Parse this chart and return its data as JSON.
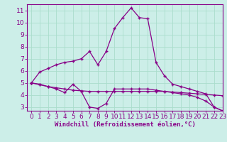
{
  "line1_x": [
    0,
    1,
    2,
    3,
    4,
    5,
    6,
    7,
    8,
    9,
    10,
    11,
    12,
    13,
    14,
    15,
    16,
    17,
    18,
    19,
    20,
    21,
    22,
    23
  ],
  "line1_y": [
    5.0,
    5.9,
    6.2,
    6.5,
    6.7,
    6.8,
    7.0,
    7.6,
    6.5,
    7.6,
    9.5,
    10.4,
    11.2,
    10.4,
    10.3,
    6.7,
    5.6,
    4.9,
    4.7,
    4.5,
    4.3,
    4.1,
    3.0,
    2.7
  ],
  "line2_x": [
    0,
    1,
    2,
    3,
    4,
    5,
    6,
    7,
    8,
    9,
    10,
    11,
    12,
    13,
    14,
    15,
    16,
    17,
    18,
    19,
    20,
    21,
    22,
    23
  ],
  "line2_y": [
    5.0,
    4.85,
    4.7,
    4.6,
    4.5,
    4.4,
    4.35,
    4.3,
    4.3,
    4.3,
    4.3,
    4.3,
    4.3,
    4.3,
    4.3,
    4.3,
    4.3,
    4.25,
    4.2,
    4.15,
    4.1,
    4.05,
    4.0,
    3.95
  ],
  "line3_x": [
    0,
    1,
    2,
    3,
    4,
    5,
    6,
    7,
    8,
    9,
    10,
    11,
    12,
    13,
    14,
    15,
    16,
    17,
    18,
    19,
    20,
    21,
    22,
    23
  ],
  "line3_y": [
    5.0,
    4.9,
    4.7,
    4.5,
    4.2,
    4.9,
    4.3,
    3.0,
    2.9,
    3.3,
    4.5,
    4.5,
    4.5,
    4.5,
    4.5,
    4.4,
    4.3,
    4.2,
    4.1,
    4.0,
    3.8,
    3.5,
    3.0,
    2.7
  ],
  "line_color": "#880088",
  "marker": "+",
  "bg_color": "#cceee8",
  "grid_color": "#aaddcc",
  "xlabel": "Windchill (Refroidissement éolien,°C)",
  "xlim": [
    -0.5,
    23
  ],
  "ylim": [
    2.7,
    11.5
  ],
  "xticks": [
    0,
    1,
    2,
    3,
    4,
    5,
    6,
    7,
    8,
    9,
    10,
    11,
    12,
    13,
    14,
    15,
    16,
    17,
    18,
    19,
    20,
    21,
    22,
    23
  ],
  "yticks": [
    3,
    4,
    5,
    6,
    7,
    8,
    9,
    10,
    11
  ],
  "xlabel_fontsize": 6.5,
  "tick_fontsize": 6.5
}
